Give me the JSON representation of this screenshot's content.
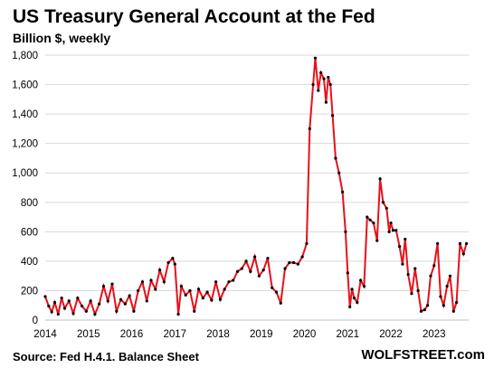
{
  "chart_data": {
    "type": "line",
    "title": "US Treasury General Account at the Fed",
    "subtitle": "Billion $, weekly",
    "source": "Source: Fed H.4.1. Balance Sheet",
    "brand": "WOLFSTREET.com",
    "ylim": [
      0,
      1800
    ],
    "yticks": [
      "0",
      "200",
      "400",
      "600",
      "800",
      "1,000",
      "1,200",
      "1,400",
      "1,600",
      "1,800"
    ],
    "xlim": [
      2014,
      2023.8
    ],
    "xticks": [
      "2014",
      "2015",
      "2016",
      "2017",
      "2018",
      "2019",
      "2020",
      "2021",
      "2022",
      "2023"
    ],
    "grid": "horizontal",
    "colors": {
      "line": "#e8101a",
      "marker": "#000000",
      "grid": "#d9d9d9"
    },
    "series": [
      {
        "x": [
          2014.0,
          2014.08,
          2014.15,
          2014.22,
          2014.3,
          2014.38,
          2014.45,
          2014.55,
          2014.65,
          2014.75,
          2014.85,
          2014.95,
          2015.05,
          2015.15,
          2015.25,
          2015.35,
          2015.45,
          2015.55,
          2015.65,
          2015.75,
          2015.85,
          2015.95,
          2016.05,
          2016.15,
          2016.25,
          2016.35,
          2016.45,
          2016.55,
          2016.65,
          2016.75,
          2016.85,
          2016.95,
          2017.0,
          2017.08,
          2017.15,
          2017.25,
          2017.35,
          2017.45,
          2017.55,
          2017.65,
          2017.75,
          2017.85,
          2017.95,
          2018.05,
          2018.15,
          2018.25,
          2018.35,
          2018.45,
          2018.55,
          2018.65,
          2018.75,
          2018.85,
          2018.95,
          2019.05,
          2019.15,
          2019.25,
          2019.35,
          2019.45,
          2019.55,
          2019.65,
          2019.75,
          2019.85,
          2019.95,
          2020.05,
          2020.12,
          2020.2,
          2020.25,
          2020.32,
          2020.38,
          2020.45,
          2020.5,
          2020.55,
          2020.6,
          2020.65,
          2020.72,
          2020.8,
          2020.88,
          2020.95,
          2021.0,
          2021.05,
          2021.1,
          2021.15,
          2021.22,
          2021.3,
          2021.38,
          2021.45,
          2021.52,
          2021.6,
          2021.68,
          2021.75,
          2021.82,
          2021.9,
          2021.96,
          2022.0,
          2022.05,
          2022.12,
          2022.2,
          2022.27,
          2022.33,
          2022.4,
          2022.48,
          2022.56,
          2022.63,
          2022.7,
          2022.78,
          2022.85,
          2022.92,
          2023.0,
          2023.08,
          2023.15,
          2023.22,
          2023.3,
          2023.37,
          2023.45,
          2023.52,
          2023.6,
          2023.68,
          2023.75
        ],
        "values": [
          160,
          95,
          55,
          120,
          40,
          150,
          80,
          130,
          45,
          150,
          95,
          60,
          130,
          40,
          110,
          230,
          130,
          245,
          60,
          140,
          110,
          165,
          60,
          200,
          260,
          130,
          270,
          210,
          340,
          260,
          390,
          420,
          380,
          40,
          230,
          170,
          200,
          60,
          210,
          150,
          190,
          135,
          260,
          140,
          210,
          260,
          270,
          330,
          350,
          400,
          330,
          430,
          300,
          340,
          420,
          220,
          190,
          115,
          350,
          390,
          390,
          380,
          430,
          520,
          1300,
          1600,
          1780,
          1560,
          1680,
          1640,
          1480,
          1650,
          1600,
          1390,
          1100,
          1000,
          870,
          600,
          320,
          90,
          210,
          150,
          120,
          270,
          230,
          700,
          680,
          660,
          540,
          960,
          800,
          760,
          600,
          660,
          610,
          610,
          500,
          380,
          550,
          310,
          180,
          350,
          200,
          60,
          70,
          100,
          300,
          370,
          520,
          160,
          100,
          230,
          300,
          60,
          120,
          520,
          450,
          520
        ]
      }
    ]
  }
}
